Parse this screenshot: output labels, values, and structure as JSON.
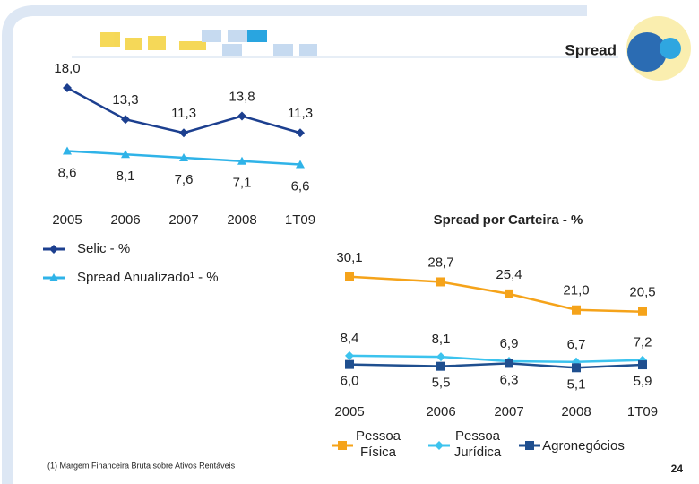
{
  "header": {
    "title": "Spread"
  },
  "footnote": "(1) Margem Financeira Bruta sobre Ativos Rentáveis",
  "page_number": 24,
  "chart_data": [
    {
      "type": "line",
      "categories": [
        "2005",
        "2006",
        "2007",
        "2008",
        "1T09"
      ],
      "series": [
        {
          "name": "Selic - %",
          "color": "#1c3f8f",
          "marker": "diamond",
          "values": [
            18.0,
            13.3,
            11.3,
            13.8,
            11.3
          ],
          "value_labels": [
            "18,0",
            "13,3",
            "11,3",
            "13,8",
            "11,3"
          ]
        },
        {
          "name": "Spread Anualizado¹ - %",
          "color": "#2fb3e8",
          "marker": "triangle",
          "values": [
            8.6,
            8.1,
            7.6,
            7.1,
            6.6
          ],
          "value_labels": [
            "8,6",
            "8,1",
            "7,6",
            "7,1",
            "6,6"
          ]
        }
      ]
    },
    {
      "type": "line",
      "title": "Spread por Carteira - %",
      "categories": [
        "2005",
        "2006",
        "2007",
        "2008",
        "1T09"
      ],
      "series": [
        {
          "name": "Pessoa Física",
          "color": "#f5a31a",
          "marker": "square",
          "values": [
            30.1,
            28.7,
            25.4,
            21.0,
            20.5
          ],
          "value_labels": [
            "30,1",
            "28,7",
            "25,4",
            "21,0",
            "20,5"
          ]
        },
        {
          "name": "Pessoa Jurídica",
          "color": "#3cc3ee",
          "marker": "diamond",
          "values": [
            8.4,
            8.1,
            6.9,
            6.7,
            7.2
          ],
          "value_labels": [
            "8,4",
            "8,1",
            "6,9",
            "6,7",
            "7,2"
          ]
        },
        {
          "name": "Agronegócios",
          "color": "#1f4f8f",
          "marker": "square",
          "values": [
            6.0,
            5.5,
            6.3,
            5.1,
            5.9
          ],
          "value_labels": [
            "6,0",
            "5,5",
            "6,3",
            "5,1",
            "5,9"
          ]
        }
      ]
    }
  ]
}
